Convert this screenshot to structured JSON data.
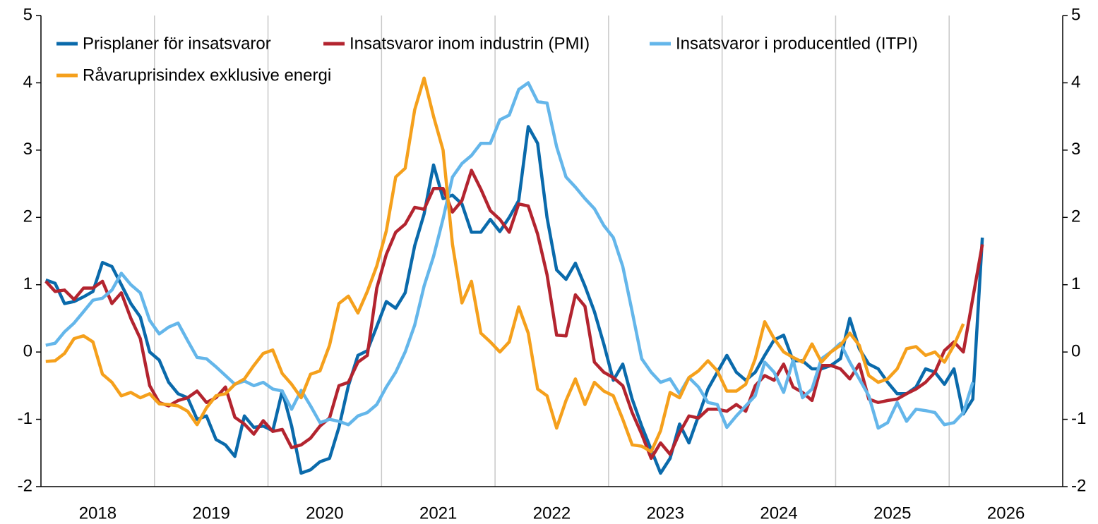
{
  "chart_data": {
    "type": "line",
    "x": [
      2018.042,
      2018.125,
      2018.208,
      2018.292,
      2018.375,
      2018.458,
      2018.542,
      2018.625,
      2018.708,
      2018.792,
      2018.875,
      2018.958,
      2019.042,
      2019.125,
      2019.208,
      2019.292,
      2019.375,
      2019.458,
      2019.542,
      2019.625,
      2019.708,
      2019.792,
      2019.875,
      2019.958,
      2020.042,
      2020.125,
      2020.208,
      2020.292,
      2020.375,
      2020.458,
      2020.542,
      2020.625,
      2020.708,
      2020.792,
      2020.875,
      2020.958,
      2021.042,
      2021.125,
      2021.208,
      2021.292,
      2021.375,
      2021.458,
      2021.542,
      2021.625,
      2021.708,
      2021.792,
      2021.875,
      2021.958,
      2022.042,
      2022.125,
      2022.208,
      2022.292,
      2022.375,
      2022.458,
      2022.542,
      2022.625,
      2022.708,
      2022.792,
      2022.875,
      2022.958,
      2023.042,
      2023.125,
      2023.208,
      2023.292,
      2023.375,
      2023.458,
      2023.542,
      2023.625,
      2023.708,
      2023.792,
      2023.875,
      2023.958,
      2024.042,
      2024.125,
      2024.208,
      2024.292,
      2024.375,
      2024.458,
      2024.542,
      2024.625,
      2024.708,
      2024.792,
      2024.875,
      2024.958,
      2025.042,
      2025.125,
      2025.208,
      2025.292,
      2025.375,
      2025.458,
      2025.542,
      2025.625,
      2025.708,
      2025.792,
      2025.875,
      2025.958,
      2026.042,
      2026.125,
      2026.208,
      2026.292
    ],
    "series": [
      {
        "name": "Prisplaner för insatsvaror",
        "color": "#0a6aab",
        "values": [
          1.07,
          1.02,
          0.72,
          0.75,
          0.82,
          0.9,
          1.33,
          1.27,
          1.0,
          0.72,
          0.52,
          0.0,
          -0.12,
          -0.45,
          -0.62,
          -0.68,
          -1.0,
          -0.95,
          -1.3,
          -1.38,
          -1.55,
          -0.95,
          -1.12,
          -1.1,
          -1.17,
          -0.58,
          -1.1,
          -1.8,
          -1.75,
          -1.63,
          -1.58,
          -1.12,
          -0.5,
          -0.05,
          0.02,
          0.38,
          0.75,
          0.65,
          0.88,
          1.58,
          2.05,
          2.78,
          2.28,
          2.33,
          2.2,
          1.78,
          1.78,
          1.97,
          1.79,
          2.0,
          2.25,
          3.35,
          3.1,
          2.0,
          1.22,
          1.08,
          1.32,
          0.98,
          0.6,
          0.12,
          -0.42,
          -0.18,
          -0.7,
          -1.1,
          -1.45,
          -1.8,
          -1.58,
          -1.07,
          -1.35,
          -0.95,
          -0.55,
          -0.3,
          -0.05,
          -0.3,
          -0.42,
          -0.3,
          -0.05,
          0.18,
          0.25,
          -0.13,
          -0.13,
          -0.25,
          -0.25,
          -0.2,
          -0.1,
          0.5,
          0.05,
          -0.18,
          -0.25,
          -0.45,
          -0.62,
          -0.62,
          -0.52,
          -0.25,
          -0.3,
          -0.48,
          -0.25,
          -0.92,
          -0.7,
          1.7
        ]
      },
      {
        "name": "Insatsvaror inom industrin (PMI)",
        "color": "#b3242f",
        "values": [
          1.05,
          0.9,
          0.92,
          0.78,
          0.95,
          0.95,
          1.05,
          0.72,
          0.88,
          0.5,
          0.2,
          -0.5,
          -0.75,
          -0.8,
          -0.72,
          -0.68,
          -0.58,
          -0.75,
          -0.68,
          -0.52,
          -0.97,
          -1.07,
          -1.22,
          -1.02,
          -1.18,
          -1.15,
          -1.42,
          -1.38,
          -1.28,
          -1.1,
          -0.98,
          -0.5,
          -0.45,
          -0.15,
          -0.05,
          0.95,
          1.45,
          1.78,
          1.9,
          2.15,
          2.12,
          2.43,
          2.43,
          2.08,
          2.25,
          2.7,
          2.42,
          2.1,
          1.97,
          1.78,
          2.2,
          2.17,
          1.75,
          1.15,
          0.25,
          0.24,
          0.85,
          0.68,
          -0.15,
          -0.3,
          -0.38,
          -0.5,
          -0.9,
          -1.22,
          -1.58,
          -1.35,
          -1.52,
          -1.2,
          -0.95,
          -0.98,
          -0.85,
          -0.85,
          -0.88,
          -0.78,
          -0.88,
          -0.5,
          -0.35,
          -0.42,
          -0.18,
          -0.52,
          -0.6,
          -0.72,
          -0.2,
          -0.2,
          -0.25,
          -0.4,
          -0.18,
          -0.7,
          -0.75,
          -0.72,
          -0.7,
          -0.62,
          -0.55,
          -0.45,
          -0.3,
          0.02,
          0.15,
          0.0,
          0.8,
          1.6
        ]
      },
      {
        "name": "Insatsvaror i producentled (ITPI)",
        "color": "#64b6ea",
        "values": [
          0.1,
          0.13,
          0.3,
          0.43,
          0.6,
          0.77,
          0.8,
          0.92,
          1.17,
          1.0,
          0.88,
          0.47,
          0.27,
          0.37,
          0.43,
          0.17,
          -0.08,
          -0.1,
          -0.22,
          -0.35,
          -0.48,
          -0.43,
          -0.5,
          -0.45,
          -0.55,
          -0.58,
          -0.85,
          -0.57,
          -0.8,
          -1.05,
          -1.0,
          -1.03,
          -1.08,
          -0.95,
          -0.9,
          -0.78,
          -0.52,
          -0.3,
          0.0,
          0.4,
          0.98,
          1.42,
          1.98,
          2.6,
          2.8,
          2.92,
          3.1,
          3.1,
          3.45,
          3.52,
          3.9,
          4.0,
          3.72,
          3.7,
          3.05,
          2.6,
          2.45,
          2.28,
          2.13,
          1.88,
          1.7,
          1.27,
          0.6,
          -0.1,
          -0.3,
          -0.45,
          -0.4,
          -0.62,
          -0.38,
          -0.52,
          -0.75,
          -0.78,
          -1.12,
          -0.95,
          -0.8,
          -0.65,
          -0.15,
          -0.3,
          -0.6,
          -0.12,
          -0.68,
          -0.55,
          -0.1,
          0.0,
          0.13,
          -0.15,
          -0.4,
          -0.65,
          -1.13,
          -1.05,
          -0.75,
          -1.03,
          -0.85,
          -0.87,
          -0.9,
          -1.08,
          -1.05,
          -0.9,
          -0.45,
          null
        ]
      },
      {
        "name": "Råvaruprisindex exklusive energi",
        "color": "#f5a01c",
        "values": [
          -0.14,
          -0.13,
          -0.02,
          0.2,
          0.24,
          0.15,
          -0.33,
          -0.45,
          -0.65,
          -0.6,
          -0.68,
          -0.62,
          -0.77,
          -0.78,
          -0.8,
          -0.88,
          -1.08,
          -0.83,
          -0.65,
          -0.62,
          -0.48,
          -0.4,
          -0.2,
          -0.02,
          0.03,
          -0.32,
          -0.48,
          -0.68,
          -0.33,
          -0.28,
          0.1,
          0.72,
          0.83,
          0.58,
          0.9,
          1.28,
          1.8,
          2.6,
          2.73,
          3.6,
          4.07,
          3.5,
          3.0,
          1.6,
          0.73,
          1.05,
          0.28,
          0.15,
          0.0,
          0.15,
          0.67,
          0.28,
          -0.55,
          -0.65,
          -1.13,
          -0.72,
          -0.4,
          -0.78,
          -0.45,
          -0.58,
          -0.65,
          -1.0,
          -1.38,
          -1.4,
          -1.48,
          -1.17,
          -0.6,
          -0.68,
          -0.38,
          -0.28,
          -0.13,
          -0.28,
          -0.58,
          -0.58,
          -0.48,
          -0.1,
          0.45,
          0.2,
          0.0,
          -0.08,
          -0.15,
          0.12,
          -0.15,
          0.0,
          0.1,
          0.28,
          0.1,
          -0.35,
          -0.45,
          -0.4,
          -0.25,
          0.05,
          0.08,
          -0.05,
          0.0,
          -0.15,
          0.1,
          0.42,
          null,
          null
        ]
      }
    ],
    "xlim": [
      2018,
      2027
    ],
    "xticks": [
      2018,
      2019,
      2020,
      2021,
      2022,
      2023,
      2024,
      2025,
      2026
    ],
    "ylim": [
      -2,
      5
    ],
    "yticks": [
      -2,
      -1,
      0,
      1,
      2,
      3,
      4,
      5
    ],
    "y2lim": [
      -2,
      5
    ],
    "y2ticks": [
      -2,
      -1,
      0,
      1,
      2,
      3,
      4,
      5
    ],
    "grid": true,
    "legend": "upper left"
  }
}
